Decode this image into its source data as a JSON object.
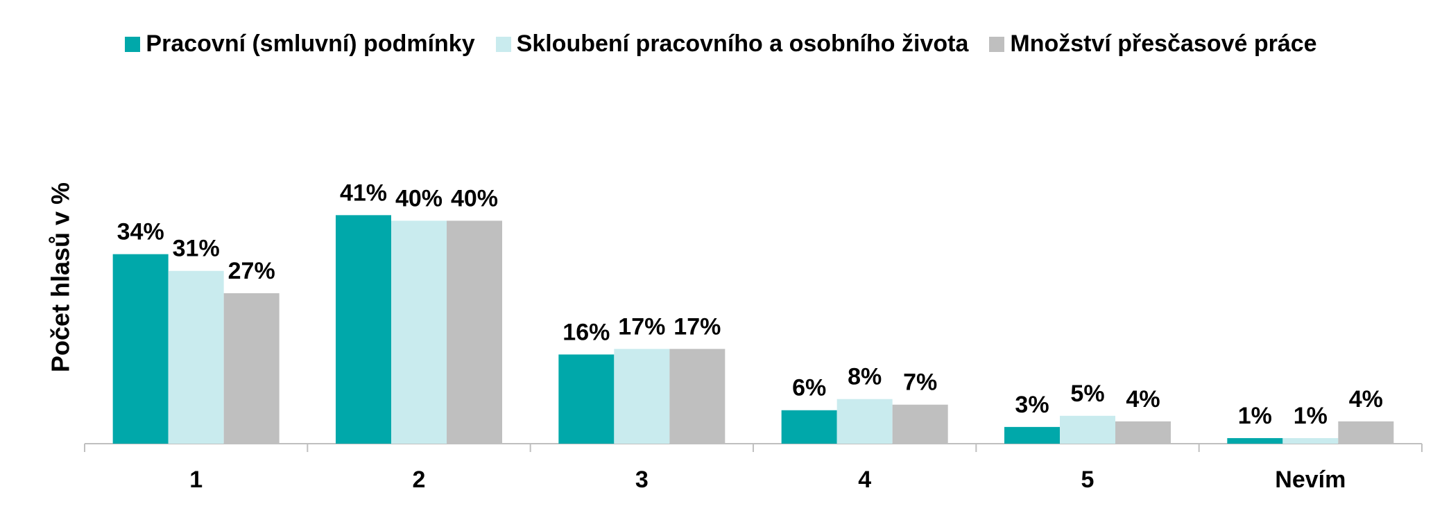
{
  "chart_data": {
    "type": "bar",
    "y_axis_label": "Počet hlasů v %",
    "categories": [
      "1",
      "2",
      "3",
      "4",
      "5",
      "Nevím"
    ],
    "series": [
      {
        "name": "Pracovní (smluvní) podmínky",
        "color": "#00A8AA",
        "values": [
          34,
          41,
          16,
          6,
          3,
          1
        ],
        "value_labels": [
          "34%",
          "41%",
          "16%",
          "6%",
          "3%",
          "1%"
        ]
      },
      {
        "name": "Skloubení pracovního a osobního života",
        "color": "#C9EBEE",
        "values": [
          31,
          40,
          17,
          8,
          5,
          1
        ],
        "value_labels": [
          "31%",
          "40%",
          "17%",
          "8%",
          "5%",
          "1%"
        ]
      },
      {
        "name": "Množství přesčasové práce",
        "color": "#BFBFBF",
        "values": [
          27,
          40,
          17,
          7,
          4,
          4
        ],
        "value_labels": [
          "27%",
          "40%",
          "17%",
          "7%",
          "4%",
          "4%"
        ]
      }
    ],
    "legend_position": "top"
  }
}
